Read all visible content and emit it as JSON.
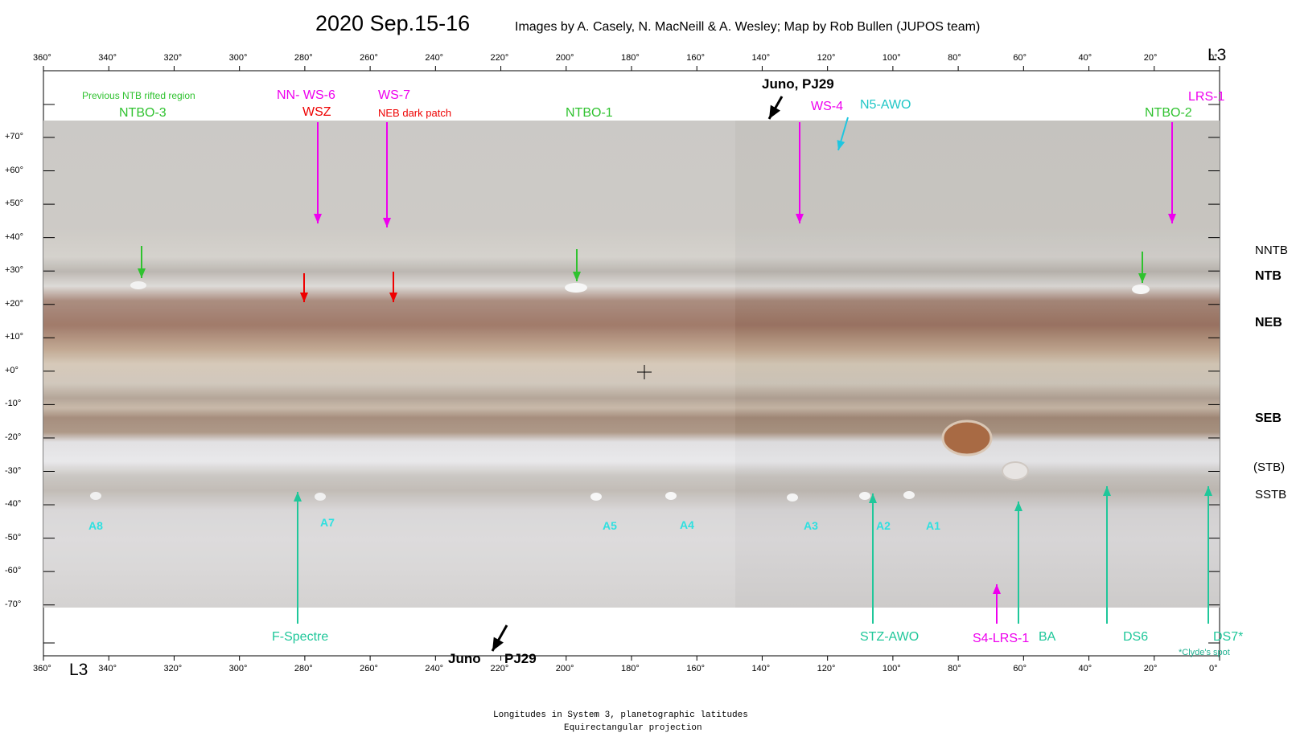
{
  "header": {
    "title": "2020 Sep.15-16",
    "credit": "Images by A. Casely, N. MacNeill & A. Wesley;  Map by Rob Bullen (JUPOS team)"
  },
  "axis": {
    "system_label": "L3",
    "longitude_ticks": [
      "360°",
      "340°",
      "320°",
      "300°",
      "280°",
      "260°",
      "240°",
      "220°",
      "200°",
      "180°",
      "160°",
      "140°",
      "120°",
      "100°",
      "80°",
      "60°",
      "40°",
      "20°",
      "0°"
    ],
    "latitude_ticks": [
      "+70°",
      "+60°",
      "+50°",
      "+40°",
      "+30°",
      "+20°",
      "+10°",
      "+0°",
      "-10°",
      "-20°",
      "-30°",
      "-40°",
      "-50°",
      "-60°",
      "-70°"
    ]
  },
  "belts": {
    "nntb": "NNTB",
    "ntb": "NTB",
    "neb": "NEB",
    "seb": "SEB",
    "stb": "(STB)",
    "sstb": "SSTB"
  },
  "labels": {
    "prev_ntb": "Previous NTB rifted region",
    "ntbo3": "NTBO-3",
    "nn_ws6": "NN- WS-6",
    "wsz": "WSZ",
    "ws7": "WS-7",
    "neb_dark": "NEB dark patch",
    "ntbo1": "NTBO-1",
    "juno_top": "Juno, PJ29",
    "ws4": "WS-4",
    "n5awo": "N5-AWO",
    "lrs1": "LRS-1",
    "ntbo2": "NTBO-2",
    "a8": "A8",
    "a7": "A7",
    "a5": "A5",
    "a4": "A4",
    "a3": "A3",
    "a2": "A2",
    "a1": "A1",
    "f_spectre": "F-Spectre",
    "juno_bottom_a": "Juno",
    "juno_bottom_b": "PJ29",
    "stz_awo": "STZ-AWO",
    "s4_lrs1": "S4-LRS-1",
    "ba": "BA",
    "ds6": "DS6",
    "ds7": "DS7*",
    "clyde": "*Clyde's spot"
  },
  "footer": {
    "line1": "Longitudes in System 3, planetographic latitudes",
    "line2": "Equirectangular projection"
  },
  "colors": {
    "green": "#2fc22f",
    "magenta": "#ee00ee",
    "red": "#ee0000",
    "cyan": "#1ec6c6",
    "teal": "#1fc79a"
  }
}
